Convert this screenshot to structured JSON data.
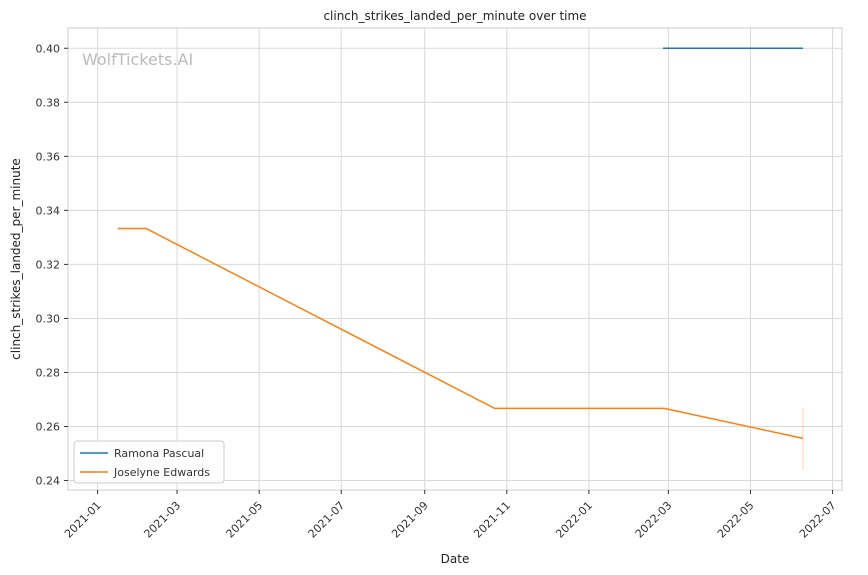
{
  "chart_data": {
    "type": "line",
    "title": "clinch_strikes_landed_per_minute over time",
    "xlabel": "Date",
    "ylabel": "clinch_strikes_landed_per_minute",
    "watermark": "WolfTickets.AI",
    "x_ticks": [
      "2021-01",
      "2021-03",
      "2021-05",
      "2021-07",
      "2021-09",
      "2021-11",
      "2022-01",
      "2022-03",
      "2022-05",
      "2022-07"
    ],
    "y_ticks": [
      "0.24",
      "0.26",
      "0.28",
      "0.30",
      "0.32",
      "0.34",
      "0.36",
      "0.38",
      "0.40"
    ],
    "xlim": [
      "2020-12-10",
      "2022-07-08"
    ],
    "ylim": [
      0.2365,
      0.4075
    ],
    "grid": true,
    "legend_position": "lower-left",
    "series": [
      {
        "name": "Ramona Pascual",
        "color": "#1f77b4",
        "points": [
          {
            "x": "2022-02-25",
            "y": 0.4
          },
          {
            "x": "2022-06-09",
            "y": 0.4
          }
        ]
      },
      {
        "name": "Joselyne Edwards",
        "color": "#ff7f0e",
        "points": [
          {
            "x": "2021-01-16",
            "y": 0.3333
          },
          {
            "x": "2021-02-06",
            "y": 0.3333
          },
          {
            "x": "2021-10-23",
            "y": 0.2667
          },
          {
            "x": "2022-02-26",
            "y": 0.2667
          },
          {
            "x": "2022-06-09",
            "y": 0.2556
          }
        ]
      }
    ],
    "error_bars": [
      {
        "series": "Joselyne Edwards",
        "x": "2022-06-09",
        "low": 0.244,
        "high": 0.267
      }
    ]
  }
}
